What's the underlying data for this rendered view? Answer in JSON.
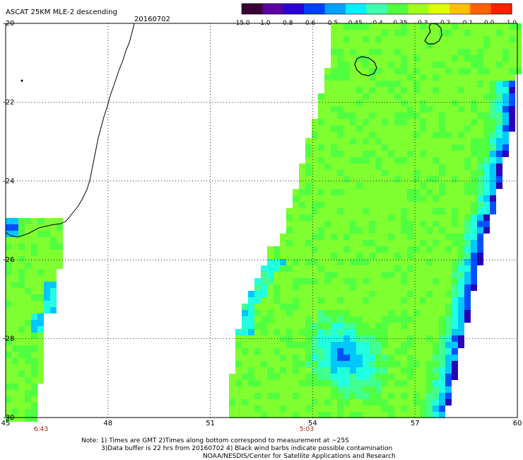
{
  "header": {
    "title": "ASCAT 25KM MLE-2 descending",
    "date": "20160702"
  },
  "colorbar": {
    "colors": [
      "#3a0035",
      "#5a00a0",
      "#2a00d8",
      "#0040ff",
      "#00a0ff",
      "#00f0ff",
      "#40ffb0",
      "#50ff40",
      "#a0ff20",
      "#e0ff00",
      "#ffc000",
      "#ff6000",
      "#ff2000"
    ],
    "labels": [
      "-15.0",
      "-1.0",
      "-0.8",
      "-0.6",
      "-0.5",
      "-0.45",
      "-0.4",
      "-0.35",
      "-0.3",
      "-0.2",
      "-0.1",
      "0.0",
      "1.0"
    ]
  },
  "map": {
    "lon_labels": [
      "45",
      "48",
      "51",
      "54",
      "57",
      "60"
    ],
    "lat_labels": [
      "-20",
      "-22",
      "-24",
      "-26",
      "-28",
      "-30"
    ],
    "swath_times": [
      "6:43",
      "5:03"
    ],
    "palette": {
      "land_line": "#000000",
      "grid": "#000000"
    }
  },
  "footer": {
    "line1": "Note: 1) Times are GMT 2)Times along bottom correspond to measurement at ~25S",
    "line2": "3)Data buffer is 22 hrs from 20160702 4) Black wind barbs indicate possible contamination",
    "line3": "NOAA/NESDIS/Center for Satellite Applications and Research"
  }
}
